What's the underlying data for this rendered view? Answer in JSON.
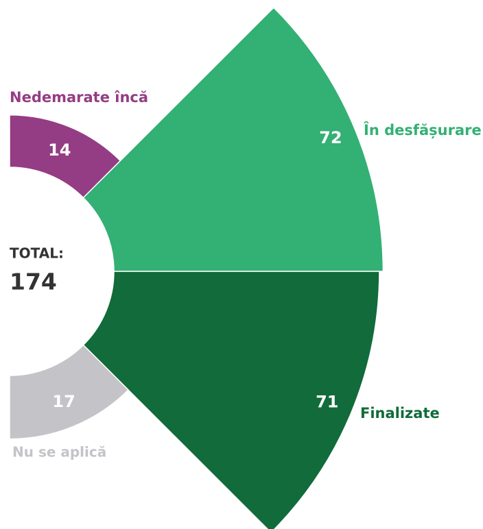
{
  "chart_data": {
    "type": "rose",
    "categories": [
      "Nedemarate încă",
      "În desfășurare",
      "Finalizate",
      "Nu se aplică"
    ],
    "values": [
      14,
      72,
      71,
      17
    ],
    "colors": [
      "#943d84",
      "#33b074",
      "#116b3a",
      "#c4c3c8"
    ],
    "total_label": "TOTAL:",
    "total": 174
  }
}
